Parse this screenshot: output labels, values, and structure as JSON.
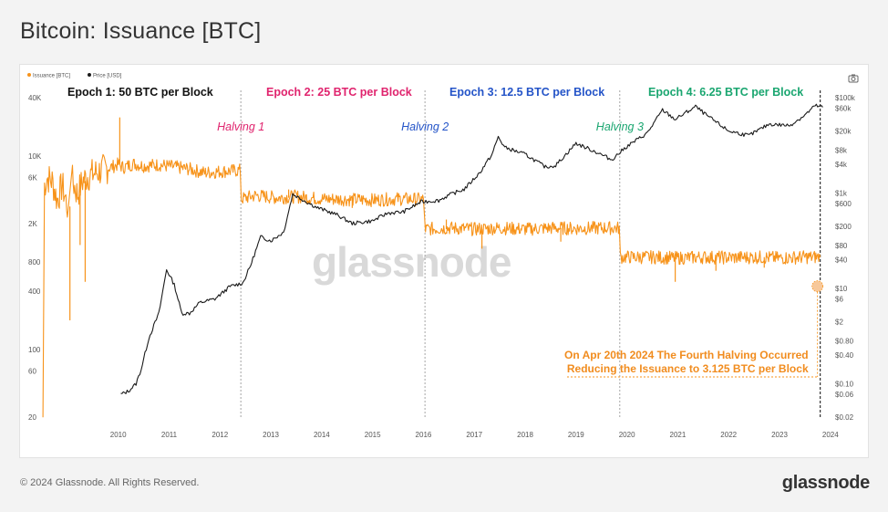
{
  "header": {
    "title": "Bitcoin: Issuance [BTC]"
  },
  "footer": {
    "copyright": "© 2024 Glassnode. All Rights Reserved.",
    "brand": "glassnode"
  },
  "watermark": "glassnode",
  "colors": {
    "issuance": "#f7931a",
    "price": "#1a1a1a",
    "epoch1": "#111111",
    "epoch2": "#e0246e",
    "epoch3": "#2454c8",
    "epoch4": "#1aa670"
  },
  "toolbar": {
    "camera_icon": "camera-icon"
  },
  "chart_data": {
    "type": "line",
    "legend": [
      {
        "name": "Issuance [BTC]",
        "color": "#f7931a"
      },
      {
        "name": "Price [USD]",
        "color": "#1a1a1a"
      }
    ],
    "legend_position": "top-left",
    "x_ticks": [
      "2010",
      "2011",
      "2012",
      "2013",
      "2014",
      "2015",
      "2016",
      "2017",
      "2018",
      "2019",
      "2020",
      "2021",
      "2022",
      "2023",
      "2024"
    ],
    "x_range": [
      2009.0,
      2024.45
    ],
    "y_left": {
      "scale": "log",
      "range": [
        20,
        40000
      ],
      "ticks": [
        {
          "v": 20,
          "label": "20"
        },
        {
          "v": 60,
          "label": "60"
        },
        {
          "v": 100,
          "label": "100"
        },
        {
          "v": 400,
          "label": "400"
        },
        {
          "v": 800,
          "label": "800"
        },
        {
          "v": 2000,
          "label": "2K"
        },
        {
          "v": 6000,
          "label": "6K"
        },
        {
          "v": 10000,
          "label": "10K"
        },
        {
          "v": 40000,
          "label": "40K"
        }
      ]
    },
    "y_right": {
      "scale": "log",
      "range": [
        0.02,
        100000
      ],
      "ticks": [
        {
          "v": 100000,
          "label": "$100k"
        },
        {
          "v": 60000,
          "label": "$60k"
        },
        {
          "v": 20000,
          "label": "$20k"
        },
        {
          "v": 8000,
          "label": "$8k"
        },
        {
          "v": 4000,
          "label": "$4k"
        },
        {
          "v": 1000,
          "label": "$1k"
        },
        {
          "v": 600,
          "label": "$600"
        },
        {
          "v": 200,
          "label": "$200"
        },
        {
          "v": 80,
          "label": "$80"
        },
        {
          "v": 40,
          "label": "$40"
        },
        {
          "v": 10,
          "label": "$10"
        },
        {
          "v": 6,
          "label": "$6"
        },
        {
          "v": 2,
          "label": "$2"
        },
        {
          "v": 0.8,
          "label": "$0.80"
        },
        {
          "v": 0.4,
          "label": "$0.40"
        },
        {
          "v": 0.1,
          "label": "$0.10"
        },
        {
          "v": 0.06,
          "label": "$0.06"
        },
        {
          "v": 0.02,
          "label": "$0.02"
        }
      ]
    },
    "epochs": [
      {
        "label": "Epoch 1: 50 BTC per Block",
        "color": "#111111",
        "start": 2009.0
      },
      {
        "label": "Epoch 2: 25 BTC per Block",
        "color": "#e0246e",
        "start": 2012.91
      },
      {
        "label": "Epoch 3: 12.5 BTC per Block",
        "color": "#2454c8",
        "start": 2016.53
      },
      {
        "label": "Epoch 4: 6.25 BTC per Block",
        "color": "#1aa670",
        "start": 2020.36
      }
    ],
    "halvings": [
      {
        "label": "Halving 1",
        "x": 2012.91,
        "color": "#e0246e"
      },
      {
        "label": "Halving 2",
        "x": 2016.53,
        "color": "#2454c8"
      },
      {
        "label": "Halving 3",
        "x": 2020.36,
        "color": "#1aa670"
      },
      {
        "label": "",
        "x": 2024.3,
        "color": "#111111"
      }
    ],
    "annotation": {
      "lines": [
        "On Apr 20th 2024 The Fourth Halving Occurred",
        "Reducing the Issuance to 3.125 BTC per Block"
      ],
      "x": 2024.3,
      "y": 450
    },
    "issuance_series": [
      [
        2009.02,
        20
      ],
      [
        2009.05,
        5000
      ],
      [
        2009.1,
        6000
      ],
      [
        2009.2,
        5500
      ],
      [
        2009.3,
        3500
      ],
      [
        2009.4,
        5000
      ],
      [
        2009.5,
        3000
      ],
      [
        2009.6,
        5500
      ],
      [
        2009.7,
        4000
      ],
      [
        2009.8,
        5500
      ],
      [
        2009.9,
        6200
      ],
      [
        2010.0,
        6500
      ],
      [
        2010.2,
        7200
      ],
      [
        2010.4,
        7800
      ],
      [
        2010.5,
        8200
      ],
      [
        2010.6,
        7600
      ],
      [
        2010.8,
        8300
      ],
      [
        2011.0,
        7900
      ],
      [
        2011.3,
        8100
      ],
      [
        2011.6,
        7700
      ],
      [
        2011.9,
        7300
      ],
      [
        2012.2,
        6700
      ],
      [
        2012.5,
        6900
      ],
      [
        2012.9,
        7100
      ],
      [
        2012.92,
        3600
      ],
      [
        2013.2,
        3900
      ],
      [
        2013.6,
        3700
      ],
      [
        2014.0,
        3800
      ],
      [
        2014.5,
        3600
      ],
      [
        2015.0,
        3550
      ],
      [
        2015.5,
        3500
      ],
      [
        2016.0,
        3600
      ],
      [
        2016.5,
        3550
      ],
      [
        2016.54,
        1750
      ],
      [
        2017.0,
        1800
      ],
      [
        2017.5,
        1750
      ],
      [
        2018.0,
        1800
      ],
      [
        2018.5,
        1750
      ],
      [
        2019.0,
        1800
      ],
      [
        2019.5,
        1780
      ],
      [
        2020.0,
        1800
      ],
      [
        2020.35,
        1800
      ],
      [
        2020.37,
        900
      ],
      [
        2021.0,
        900
      ],
      [
        2021.5,
        880
      ],
      [
        2022.0,
        900
      ],
      [
        2022.5,
        890
      ],
      [
        2023.0,
        900
      ],
      [
        2023.5,
        880
      ],
      [
        2024.0,
        900
      ],
      [
        2024.3,
        900
      ]
    ],
    "issuance_spikes": [
      [
        2009.55,
        200
      ],
      [
        2009.75,
        1200
      ],
      [
        2009.85,
        500
      ],
      [
        2010.53,
        25000
      ],
      [
        2013.85,
        4500
      ],
      [
        2015.1,
        2900
      ],
      [
        2016.95,
        2200
      ],
      [
        2017.65,
        1100
      ],
      [
        2019.2,
        1300
      ],
      [
        2021.45,
        500
      ],
      [
        2022.25,
        650
      ],
      [
        2023.2,
        700
      ]
    ],
    "price_series": [
      [
        2010.55,
        0.06
      ],
      [
        2010.7,
        0.07
      ],
      [
        2010.85,
        0.1
      ],
      [
        2010.95,
        0.2
      ],
      [
        2011.1,
        0.9
      ],
      [
        2011.3,
        3
      ],
      [
        2011.45,
        25
      ],
      [
        2011.6,
        12
      ],
      [
        2011.75,
        3
      ],
      [
        2011.9,
        3
      ],
      [
        2012.1,
        5
      ],
      [
        2012.4,
        6
      ],
      [
        2012.7,
        11
      ],
      [
        2012.95,
        13
      ],
      [
        2013.1,
        30
      ],
      [
        2013.3,
        120
      ],
      [
        2013.5,
        100
      ],
      [
        2013.75,
        150
      ],
      [
        2013.93,
        950
      ],
      [
        2014.1,
        750
      ],
      [
        2014.4,
        500
      ],
      [
        2014.8,
        350
      ],
      [
        2015.1,
        230
      ],
      [
        2015.5,
        260
      ],
      [
        2015.8,
        380
      ],
      [
        2016.1,
        400
      ],
      [
        2016.45,
        650
      ],
      [
        2016.8,
        700
      ],
      [
        2017.0,
        900
      ],
      [
        2017.3,
        1200
      ],
      [
        2017.6,
        2600
      ],
      [
        2017.85,
        6500
      ],
      [
        2017.97,
        15000
      ],
      [
        2018.1,
        9000
      ],
      [
        2018.5,
        6500
      ],
      [
        2018.9,
        3500
      ],
      [
        2019.1,
        3800
      ],
      [
        2019.5,
        11000
      ],
      [
        2019.9,
        7200
      ],
      [
        2020.2,
        5000
      ],
      [
        2020.5,
        9500
      ],
      [
        2020.9,
        18000
      ],
      [
        2021.2,
        55000
      ],
      [
        2021.45,
        35000
      ],
      [
        2021.85,
        65000
      ],
      [
        2022.1,
        40000
      ],
      [
        2022.5,
        20000
      ],
      [
        2022.9,
        16000
      ],
      [
        2023.3,
        28000
      ],
      [
        2023.7,
        26000
      ],
      [
        2024.0,
        43000
      ],
      [
        2024.2,
        68000
      ],
      [
        2024.35,
        63000
      ]
    ]
  }
}
